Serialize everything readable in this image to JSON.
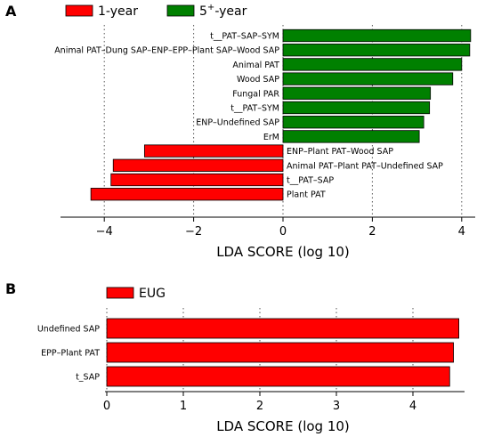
{
  "chart_data": [
    {
      "panel": "A",
      "type": "bar",
      "orientation": "horizontal",
      "xlabel": "LDA SCORE (log 10)",
      "xlim": [
        -4.6,
        4.6
      ],
      "xticks": [
        -4,
        -2,
        0,
        2,
        4
      ],
      "grid": "vertical dotted at ticks",
      "legend_position": "top-left",
      "series": [
        {
          "name": "1-year",
          "color": "#ff0000"
        },
        {
          "name": "5+-year",
          "name_base": "5",
          "name_sup": "+",
          "name_tail": "-year",
          "color": "#008000"
        }
      ],
      "bars": [
        {
          "label": "t__PAT–SAP–SYM",
          "value": 4.2,
          "group": "5+-year"
        },
        {
          "label": "Animal PAT–Dung SAP–ENP–EPP–Plant SAP–Wood SAP",
          "value": 4.18,
          "group": "5+-year"
        },
        {
          "label": "Animal PAT",
          "value": 4.0,
          "group": "5+-year"
        },
        {
          "label": "Wood SAP",
          "value": 3.8,
          "group": "5+-year"
        },
        {
          "label": "Fungal PAR",
          "value": 3.3,
          "group": "5+-year"
        },
        {
          "label": "t__PAT–SYM",
          "value": 3.28,
          "group": "5+-year"
        },
        {
          "label": "ENP–Undefined SAP",
          "value": 3.15,
          "group": "5+-year"
        },
        {
          "label": "ErM",
          "value": 3.05,
          "group": "5+-year"
        },
        {
          "label": "ENP–Plant PAT–Wood SAP",
          "value": -3.1,
          "group": "1-year"
        },
        {
          "label": "Animal PAT–Plant PAT–Undefined SAP",
          "value": -3.8,
          "group": "1-year"
        },
        {
          "label": "t__PAT–SAP",
          "value": -3.85,
          "group": "1-year"
        },
        {
          "label": "Plant PAT",
          "value": -4.3,
          "group": "1-year"
        }
      ]
    },
    {
      "panel": "B",
      "type": "bar",
      "orientation": "horizontal",
      "xlabel": "LDA SCORE (log 10)",
      "xlim": [
        0,
        4.75
      ],
      "xticks": [
        0,
        1,
        2,
        3,
        4
      ],
      "grid": "vertical dotted at ticks",
      "legend_position": "top-left",
      "series": [
        {
          "name": "EUG",
          "color": "#ff0000"
        }
      ],
      "bars": [
        {
          "label": "Undefined SAP",
          "value": 4.6,
          "group": "EUG"
        },
        {
          "label": "EPP–Plant PAT",
          "value": 4.53,
          "group": "EUG"
        },
        {
          "label": "t_SAP",
          "value": 4.48,
          "group": "EUG"
        }
      ]
    }
  ]
}
